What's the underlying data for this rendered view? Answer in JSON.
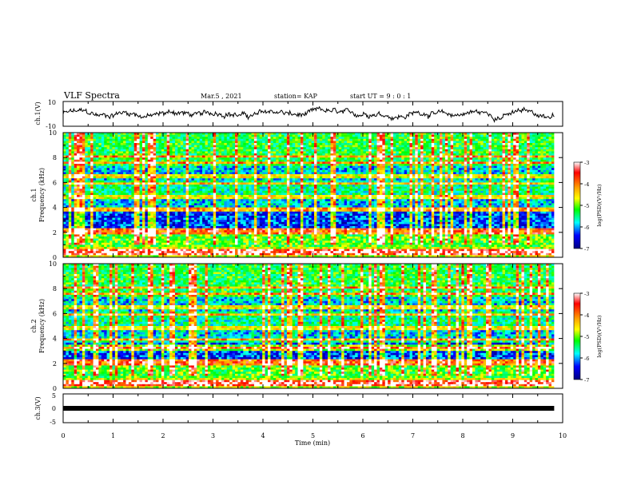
{
  "header": {
    "title": "VLF Spectra",
    "date": "Mar.5 , 2021",
    "station": "station= KAP",
    "start": "start  UT =   9 : 0  : 1"
  },
  "chart_data": [
    {
      "type": "line",
      "title": "",
      "ylabel": "ch.1(V)",
      "xlabel": "",
      "xlim": [
        0,
        10
      ],
      "ylim": [
        -10,
        10
      ],
      "ytick_labels": [
        "10",
        "-10"
      ],
      "data_x_max": 9.83,
      "approx_mean": 0,
      "approx_range": [
        -8,
        8
      ]
    },
    {
      "type": "heatmap",
      "title": "",
      "ylabel": "ch.1\nFrequency (kHz)",
      "xlim": [
        0,
        10
      ],
      "ylim": [
        0,
        10
      ],
      "ytick_labels": [
        "0",
        "2",
        "4",
        "6",
        "8",
        "10"
      ],
      "colorbar": {
        "label": "log(PSD)(V²/Hz)",
        "range": [
          -7,
          -3
        ],
        "tick_labels": [
          "-3",
          "-4",
          "-5",
          "-6",
          "-7"
        ]
      },
      "description_bands_khz": [
        0.3,
        0.6,
        2.0,
        2.2,
        3.8,
        4.8,
        5.9,
        6.5,
        7.6,
        8.1
      ]
    },
    {
      "type": "heatmap",
      "title": "",
      "ylabel": "ch.2\nFrequency (kHz)",
      "xlim": [
        0,
        10
      ],
      "ylim": [
        0,
        10
      ],
      "ytick_labels": [
        "0",
        "2",
        "4",
        "6",
        "8",
        "10"
      ],
      "colorbar": {
        "label": "log(PSD)(V²/Hz)",
        "range": [
          -7,
          -3
        ],
        "tick_labels": [
          "-3",
          "-4",
          "-5",
          "-6",
          "-7"
        ]
      },
      "description_bands_khz": [
        0.3,
        0.6,
        2.0,
        2.2,
        3.3,
        3.9,
        4.8,
        5.9,
        6.5,
        7.6,
        8.1
      ]
    },
    {
      "type": "line",
      "title": "",
      "ylabel": "ch.3(V)",
      "xlabel": "Time (min)",
      "xlim": [
        0,
        10
      ],
      "ylim": [
        -5,
        5
      ],
      "ytick_labels": [
        "5",
        "0",
        "-5"
      ],
      "xtick_labels": [
        "0",
        "1",
        "2",
        "3",
        "4",
        "5",
        "6",
        "7",
        "8",
        "9",
        "10"
      ],
      "constant_value": 0,
      "data_x_max": 9.83
    }
  ]
}
